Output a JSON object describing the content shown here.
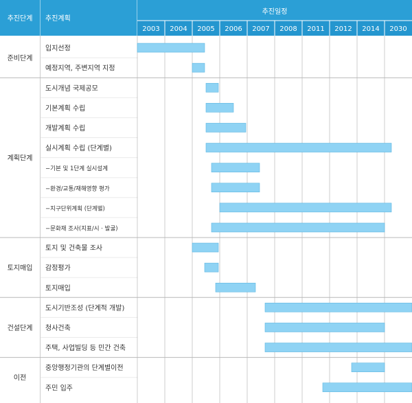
{
  "chart_data": {
    "type": "gantt",
    "header": {
      "stage_col": "추진단계",
      "plan_col": "추진계획",
      "schedule": "추진일정"
    },
    "years": [
      "2003",
      "2004",
      "2005",
      "2006",
      "2007",
      "2008",
      "2011",
      "2012",
      "2014",
      "2030"
    ],
    "colors": {
      "header": "#2b9fd6",
      "year_row": "#2496cf",
      "bar_fill": "#8fd3f4",
      "bar_stroke": "#5cb6e0",
      "grid": "#cccccc",
      "row_line": "#d6d6d6",
      "stage_line": "#b8b8b8"
    },
    "stages": [
      {
        "name": "준비단계",
        "tasks": [
          {
            "label": "입지선정",
            "start": 0.0,
            "end": 2.45,
            "sub": false
          },
          {
            "label": "예정지역, 주변지역 지정",
            "start": 2.0,
            "end": 2.45,
            "sub": false
          }
        ]
      },
      {
        "name": "계획단계",
        "tasks": [
          {
            "label": "도시개념 국제공모",
            "start": 2.5,
            "end": 2.95,
            "sub": false
          },
          {
            "label": "기본계획 수립",
            "start": 2.5,
            "end": 3.5,
            "sub": false
          },
          {
            "label": "개발계획 수립",
            "start": 2.5,
            "end": 3.95,
            "sub": false
          },
          {
            "label": "실시계획 수립 (단계별)",
            "start": 2.5,
            "end": 9.25,
            "sub": false
          },
          {
            "label": "−기본 및 1단계 실시설계",
            "start": 2.7,
            "end": 4.45,
            "sub": true
          },
          {
            "label": "−환경/교통/재해영향 평가",
            "start": 2.7,
            "end": 4.45,
            "sub": true
          },
          {
            "label": "−지구단위계획 (단계별)",
            "start": 3.0,
            "end": 9.25,
            "sub": true
          },
          {
            "label": "−문화재 조사(지표/시 · 발굴)",
            "start": 2.7,
            "end": 9.0,
            "sub": true
          }
        ]
      },
      {
        "name": "토지매입",
        "tasks": [
          {
            "label": "토지 및 건축물 조사",
            "start": 2.0,
            "end": 2.95,
            "sub": false
          },
          {
            "label": "감정평가",
            "start": 2.45,
            "end": 2.95,
            "sub": false
          },
          {
            "label": "토지매입",
            "start": 2.85,
            "end": 4.3,
            "sub": false
          }
        ]
      },
      {
        "name": "건설단계",
        "tasks": [
          {
            "label": "도시기반조성 (단계적 개발)",
            "start": 4.65,
            "end": 10.0,
            "sub": false
          },
          {
            "label": "청사건축",
            "start": 4.65,
            "end": 9.0,
            "sub": false
          },
          {
            "label": "주택, 사업빌딩 등 민간 건축",
            "start": 4.65,
            "end": 10.0,
            "sub": false
          }
        ]
      },
      {
        "name": "이전",
        "tasks": [
          {
            "label": "중앙행정기관의 단계별이전",
            "start": 7.8,
            "end": 9.0,
            "sub": false
          },
          {
            "label": "주민 입주",
            "start": 6.75,
            "end": 10.0,
            "sub": false
          }
        ]
      }
    ]
  }
}
